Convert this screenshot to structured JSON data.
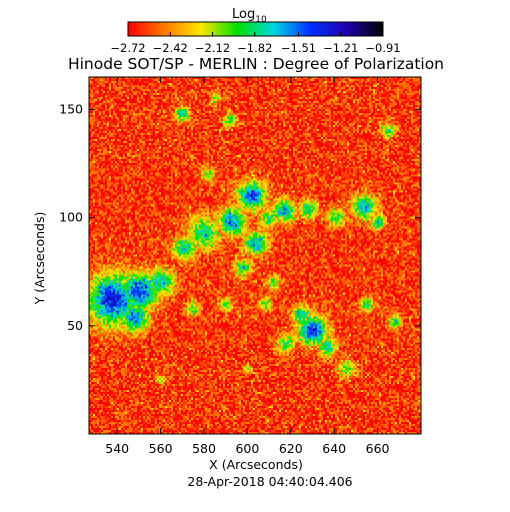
{
  "chart_data": {
    "type": "heatmap",
    "title": "Hinode SOT/SP - MERLIN : Degree of Polarization",
    "xlabel": "X (Arcseconds)",
    "ylabel": "Y (Arcseconds)",
    "timestamp": "28-Apr-2018 04:40:04.406",
    "xlim": [
      527,
      680
    ],
    "ylim": [
      0,
      165
    ],
    "x_ticks": [
      540,
      560,
      580,
      600,
      620,
      640,
      660
    ],
    "x_tick_labels": [
      "540",
      "560",
      "580",
      "600",
      "620",
      "640",
      "660"
    ],
    "y_ticks": [
      50,
      100,
      150
    ],
    "y_tick_labels": [
      "50",
      "100",
      "150"
    ],
    "colorbar": {
      "label": "Log",
      "label_sub": "10",
      "range": [
        -2.72,
        -0.91
      ],
      "ticks": [
        -2.72,
        -2.42,
        -2.12,
        -1.82,
        -1.51,
        -1.21,
        -0.91
      ],
      "tick_labels": [
        "−2.72",
        "−2.42",
        "−2.12",
        "−1.82",
        "−1.51",
        "−1.21",
        "−0.91"
      ],
      "colors": [
        "#ff0000",
        "#ff7a00",
        "#ffe600",
        "#00e000",
        "#00d8e0",
        "#0030ff",
        "#2000b0",
        "#000000"
      ]
    },
    "features": [
      {
        "x": 538,
        "y": 62,
        "r": 11,
        "value": -1.35
      },
      {
        "x": 550,
        "y": 66,
        "r": 8,
        "value": -1.4
      },
      {
        "x": 548,
        "y": 54,
        "r": 6,
        "value": -1.5
      },
      {
        "x": 560,
        "y": 70,
        "r": 6,
        "value": -1.7
      },
      {
        "x": 571,
        "y": 86,
        "r": 5,
        "value": -1.75
      },
      {
        "x": 580,
        "y": 93,
        "r": 7,
        "value": -1.8
      },
      {
        "x": 593,
        "y": 98,
        "r": 6,
        "value": -1.55
      },
      {
        "x": 602,
        "y": 110,
        "r": 6,
        "value": -1.4
      },
      {
        "x": 604,
        "y": 88,
        "r": 5,
        "value": -1.6
      },
      {
        "x": 598,
        "y": 77,
        "r": 4,
        "value": -1.9
      },
      {
        "x": 610,
        "y": 100,
        "r": 4,
        "value": -1.9
      },
      {
        "x": 617,
        "y": 103,
        "r": 5,
        "value": -1.65
      },
      {
        "x": 628,
        "y": 104,
        "r": 4,
        "value": -1.8
      },
      {
        "x": 641,
        "y": 100,
        "r": 4,
        "value": -1.9
      },
      {
        "x": 654,
        "y": 105,
        "r": 5,
        "value": -1.6
      },
      {
        "x": 660,
        "y": 98,
        "r": 3,
        "value": -1.7
      },
      {
        "x": 665,
        "y": 140,
        "r": 3,
        "value": -1.9
      },
      {
        "x": 592,
        "y": 145,
        "r": 3,
        "value": -1.95
      },
      {
        "x": 570,
        "y": 148,
        "r": 3,
        "value": -1.7
      },
      {
        "x": 582,
        "y": 120,
        "r": 3,
        "value": -2.0
      },
      {
        "x": 585,
        "y": 155,
        "r": 2,
        "value": -2.0
      },
      {
        "x": 630,
        "y": 48,
        "r": 6,
        "value": -1.3
      },
      {
        "x": 625,
        "y": 55,
        "r": 4,
        "value": -1.7
      },
      {
        "x": 637,
        "y": 40,
        "r": 4,
        "value": -1.75
      },
      {
        "x": 618,
        "y": 42,
        "r": 4,
        "value": -1.9
      },
      {
        "x": 646,
        "y": 30,
        "r": 4,
        "value": -1.95
      },
      {
        "x": 655,
        "y": 60,
        "r": 3,
        "value": -1.85
      },
      {
        "x": 668,
        "y": 52,
        "r": 3,
        "value": -1.9
      },
      {
        "x": 575,
        "y": 58,
        "r": 3,
        "value": -1.9
      },
      {
        "x": 590,
        "y": 60,
        "r": 3,
        "value": -2.0
      },
      {
        "x": 608,
        "y": 60,
        "r": 3,
        "value": -2.0
      },
      {
        "x": 612,
        "y": 70,
        "r": 3,
        "value": -1.95
      },
      {
        "x": 560,
        "y": 25,
        "r": 2,
        "value": -2.05
      },
      {
        "x": 600,
        "y": 30,
        "r": 2,
        "value": -2.05
      }
    ]
  }
}
